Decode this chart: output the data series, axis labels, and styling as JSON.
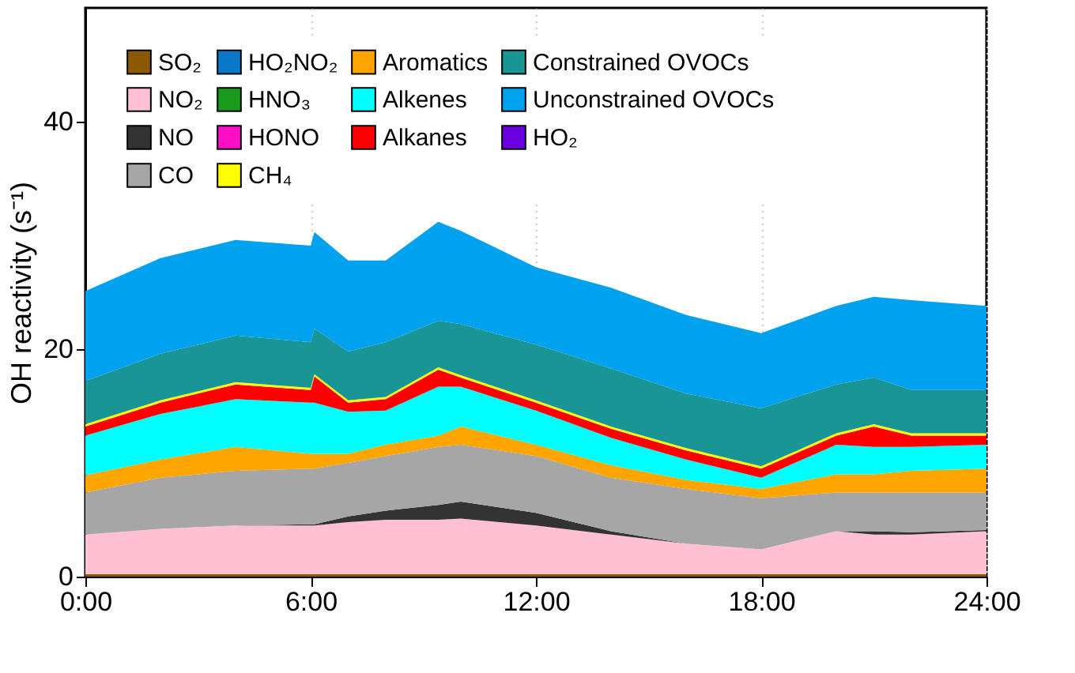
{
  "chart_data": {
    "type": "area",
    "stacked": true,
    "ylabel": "OH reactivity (s⁻¹)",
    "x": [
      0,
      2,
      4,
      6,
      6.1,
      7,
      8,
      9.4,
      10,
      12,
      14,
      16,
      18,
      20,
      21,
      22,
      24
    ],
    "xlim": [
      0,
      24
    ],
    "xticks": [
      {
        "value": 0,
        "label": "0:00"
      },
      {
        "value": 6,
        "label": "6:00"
      },
      {
        "value": 12,
        "label": "12:00"
      },
      {
        "value": 18,
        "label": "18:00"
      },
      {
        "value": 24,
        "label": "24:00"
      }
    ],
    "ylim": [
      0,
      50
    ],
    "yticks": [
      0,
      20,
      40
    ],
    "grid": "x",
    "legend": "top",
    "series": [
      {
        "name": "SO₂",
        "color": "#8b5a00",
        "values": [
          0.2,
          0.2,
          0.2,
          0.2,
          0.2,
          0.2,
          0.2,
          0.2,
          0.2,
          0.2,
          0.2,
          0.2,
          0.2,
          0.2,
          0.2,
          0.2,
          0.2
        ]
      },
      {
        "name": "NO₂",
        "color": "#ffc0d4",
        "values": [
          3.5,
          4.0,
          4.3,
          4.3,
          4.3,
          4.6,
          4.8,
          4.8,
          4.9,
          4.3,
          3.5,
          2.7,
          2.2,
          3.8,
          3.5,
          3.5,
          3.8
        ]
      },
      {
        "name": "NO",
        "color": "#333333",
        "values": [
          0,
          0,
          0,
          0.1,
          0.1,
          0.5,
          0.8,
          1.3,
          1.5,
          1.1,
          0.3,
          0,
          0,
          0,
          0.3,
          0.2,
          0.1
        ]
      },
      {
        "name": "HO₂",
        "color": "#6a00e0",
        "values": [
          null,
          null,
          null,
          null,
          null,
          null,
          null,
          null,
          null,
          null,
          null,
          null,
          null,
          null,
          null,
          null,
          null
        ]
      },
      {
        "name": "HO₂NO₂",
        "color": "#0a78c8",
        "values": [
          null,
          null,
          null,
          null,
          null,
          null,
          null,
          null,
          null,
          null,
          null,
          null,
          null,
          null,
          null,
          null,
          null
        ]
      },
      {
        "name": "HNO₃",
        "color": "#1a9a1a",
        "values": [
          null,
          null,
          null,
          null,
          null,
          null,
          null,
          null,
          null,
          null,
          null,
          null,
          null,
          null,
          null,
          null,
          null
        ]
      },
      {
        "name": "HONO",
        "color": "#ff10c8",
        "values": [
          null,
          null,
          null,
          null,
          null,
          null,
          null,
          null,
          null,
          null,
          null,
          null,
          null,
          null,
          null,
          null,
          null
        ]
      },
      {
        "name": "CO",
        "color": "#a6a6a6",
        "values": [
          3.7,
          4.5,
          4.8,
          4.9,
          4.9,
          4.7,
          4.8,
          5.1,
          5.0,
          5.0,
          4.7,
          4.8,
          4.5,
          3.4,
          3.4,
          3.5,
          3.3
        ]
      },
      {
        "name": "Aromatics",
        "color": "#ffa500",
        "values": [
          1.5,
          1.6,
          2.1,
          1.3,
          1.3,
          0.8,
          1.0,
          1.0,
          1.6,
          1.0,
          1.1,
          0.8,
          0.8,
          1.6,
          1.6,
          1.9,
          2.1
        ]
      },
      {
        "name": "Alkenes",
        "color": "#00ffff",
        "values": [
          3.5,
          4.0,
          4.2,
          4.5,
          4.5,
          3.7,
          3.0,
          4.3,
          3.5,
          3.0,
          2.4,
          1.8,
          1.0,
          2.6,
          2.4,
          2.1,
          2.1
        ]
      },
      {
        "name": "Alkanes",
        "color": "#ff0000",
        "values": [
          0.8,
          1.0,
          1.3,
          1.1,
          2.3,
          0.8,
          1.0,
          1.5,
          0.8,
          0.7,
          0.8,
          0.8,
          0.8,
          0.8,
          1.8,
          1.0,
          0.8
        ]
      },
      {
        "name": "CH₄",
        "color": "#ffff00",
        "values": [
          0.2,
          0.2,
          0.2,
          0.2,
          0.2,
          0.2,
          0.2,
          0.2,
          0.2,
          0.2,
          0.2,
          0.2,
          0.2,
          0.2,
          0.2,
          0.2,
          0.2
        ]
      },
      {
        "name": "Constrained OVOCs",
        "color": "#1a9595",
        "values": [
          3.8,
          4.1,
          4.1,
          4.0,
          4.0,
          4.3,
          4.8,
          4.1,
          4.5,
          4.9,
          5.1,
          4.8,
          5.1,
          4.3,
          4.1,
          3.8,
          3.8
        ]
      },
      {
        "name": "Unconstrained OVOCs",
        "color": "#00a2f0",
        "values": [
          7.9,
          8.4,
          8.4,
          8.5,
          8.5,
          8.0,
          7.2,
          8.7,
          8.2,
          6.8,
          7.1,
          6.9,
          6.6,
          6.9,
          7.1,
          7.9,
          7.4
        ]
      }
    ]
  }
}
